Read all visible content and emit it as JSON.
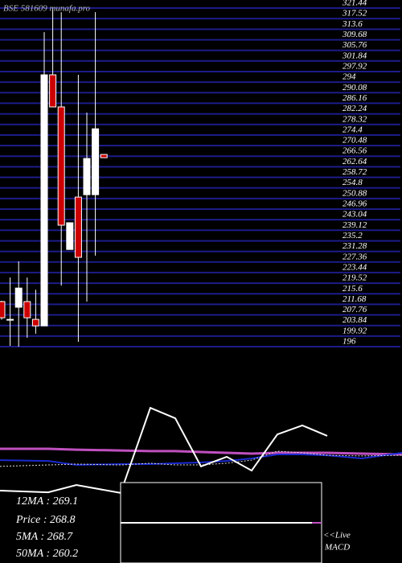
{
  "chart_data": [
    {
      "type": "candlestick",
      "title": "BSE 581609 munafa.pro",
      "categories": [
        null,
        null,
        null,
        null,
        null,
        null,
        null,
        null,
        null,
        null,
        null,
        null,
        null
      ],
      "open": [
        212.7,
        206.1,
        210.6,
        212.7,
        206.1,
        203.7,
        296.7,
        284.8,
        232.0,
        251.4,
        252.3,
        252.3,
        267.2
      ],
      "high": [
        213.0,
        221.6,
        227.6,
        221.6,
        217.1,
        312.5,
        321.44,
        319.9,
        241.9,
        296.7,
        282.7,
        319.9,
        267.2
      ],
      "low": [
        206.0,
        196.3,
        196.0,
        199.3,
        200.8,
        203.7,
        284.8,
        218.6,
        232.0,
        197.8,
        212.7,
        229.7,
        266.0
      ],
      "close": [
        206.7,
        206.0,
        217.7,
        206.7,
        203.7,
        296.7,
        284.8,
        241.0,
        241.9,
        229.1,
        265.7,
        276.7,
        266.0
      ],
      "up_color": "#ffffff",
      "down_color": "#cc0000",
      "ylim": [
        196,
        321.44
      ],
      "yticks": [
        321.44,
        317.52,
        313.6,
        309.68,
        305.76,
        301.84,
        297.92,
        294,
        290.08,
        286.16,
        282.24,
        278.32,
        274.4,
        270.48,
        266.56,
        262.64,
        258.72,
        254.8,
        250.88,
        246.96,
        243.04,
        239.12,
        235.2,
        231.28,
        227.36,
        223.44,
        219.52,
        215.6,
        211.68,
        207.76,
        203.84,
        199.92,
        196
      ],
      "grid": true,
      "grid_color": "#1c1c8a"
    },
    {
      "type": "line",
      "x": [
        0,
        60,
        95,
        150,
        187,
        218,
        250,
        282,
        313,
        345,
        376,
        407,
        450,
        500
      ],
      "xlim": [
        0,
        500
      ],
      "ylim": [
        0,
        100
      ],
      "series": [
        {
          "color": "#ffffff",
          "values": [
            34.6,
            33.8,
            37.3,
            33.5,
            74.2,
            69.2,
            46.2,
            50.8,
            44.2,
            61.5,
            65.8,
            60.8,
            null,
            null
          ]
        },
        {
          "color": "#c050c0",
          "values": [
            54.6,
            54.6,
            54.2,
            53.8,
            53.5,
            53.5,
            53.1,
            52.7,
            52.3,
            52.7,
            52.7,
            52.7,
            52.3,
            51.9
          ]
        },
        {
          "color": "#1a2ad0",
          "values": [
            49.2,
            48.8,
            46.9,
            47.3,
            47.3,
            47.7,
            48.1,
            48.8,
            50.0,
            51.9,
            51.9,
            51.5,
            50.0,
            52.7
          ]
        },
        {
          "color": "#dddddd",
          "dashed": true,
          "values": [
            46.2,
            46.9,
            47.3,
            46.9,
            47.7,
            46.9,
            46.9,
            47.7,
            49.2,
            53.5,
            52.7,
            51.5,
            51.2,
            51.5
          ]
        }
      ],
      "annotations": [
        "12MA : 269.1",
        "Price   : 268.8",
        "5MA : 268.7",
        "50MA : 260.2",
        "<<Live",
        "MACD"
      ]
    }
  ]
}
